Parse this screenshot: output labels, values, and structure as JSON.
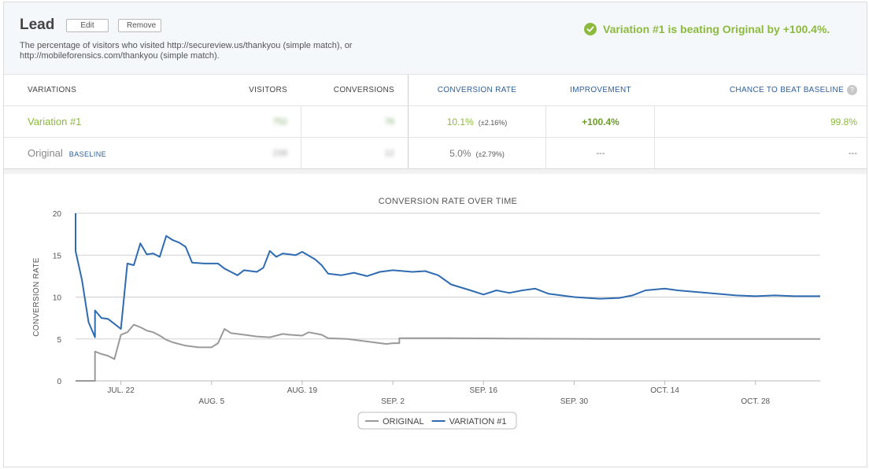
{
  "goal": {
    "title": "Lead",
    "edit_label": "Edit",
    "remove_label": "Remove",
    "description": "The percentage of visitors who visited http://secureview.us/thankyou (simple match), or http://mobileforensics.com/thankyou (simple match)."
  },
  "verdict": {
    "text": "Variation #1 is beating Original by +100.4%.",
    "color": "#8cba3c"
  },
  "table": {
    "headers": {
      "variations": "VARIATIONS",
      "visitors": "VISITORS",
      "conversions": "CONVERSIONS",
      "conversion_rate": "CONVERSION RATE",
      "improvement": "IMPROVEMENT",
      "chance": "CHANCE TO BEAT BASELINE",
      "help_icon": "?"
    },
    "rows": [
      {
        "name": "Variation #1",
        "visitors": "752",
        "conversions": "76",
        "rate": "10.1%",
        "interval": "(±2.16%)",
        "improvement": "+100.4%",
        "chance": "99.8%"
      },
      {
        "name": "Original",
        "tag": "BASELINE",
        "visitors": "239",
        "conversions": "12",
        "rate": "5.0%",
        "interval": "(±2.79%)",
        "improvement": "---",
        "chance": "---"
      }
    ]
  },
  "chart_data": {
    "type": "line",
    "title": "CONVERSION RATE OVER TIME",
    "xlabel": "",
    "ylabel": "CONVERSION RATE",
    "x_range": [
      "2013-07-15",
      "2013-11-07"
    ],
    "ylim": [
      0,
      20
    ],
    "y_ticks": [
      0,
      5,
      10,
      15,
      20
    ],
    "x_ticks": [
      {
        "date": "2013-07-22",
        "label": "JUL. 22"
      },
      {
        "date": "2013-08-05",
        "label": "AUG. 5"
      },
      {
        "date": "2013-08-19",
        "label": "AUG. 19"
      },
      {
        "date": "2013-09-02",
        "label": "SEP. 2"
      },
      {
        "date": "2013-09-16",
        "label": "SEP. 16"
      },
      {
        "date": "2013-09-30",
        "label": "SEP. 30"
      },
      {
        "date": "2013-10-14",
        "label": "OCT. 14"
      },
      {
        "date": "2013-10-28",
        "label": "OCT. 28"
      }
    ],
    "grid": true,
    "legend_position": "bottom-center",
    "series": [
      {
        "name": "ORIGINAL",
        "color": "#9a9a9a",
        "points": [
          [
            "2013-07-15",
            0
          ],
          [
            "2013-07-18",
            0
          ],
          [
            "2013-07-18",
            3.5
          ],
          [
            "2013-07-19",
            3.2
          ],
          [
            "2013-07-20",
            3.0
          ],
          [
            "2013-07-21",
            2.6
          ],
          [
            "2013-07-22",
            5.5
          ],
          [
            "2013-07-23",
            5.8
          ],
          [
            "2013-07-24",
            6.7
          ],
          [
            "2013-07-25",
            6.4
          ],
          [
            "2013-07-26",
            6.0
          ],
          [
            "2013-07-27",
            5.8
          ],
          [
            "2013-07-28",
            5.4
          ],
          [
            "2013-07-29",
            4.9
          ],
          [
            "2013-07-30",
            4.6
          ],
          [
            "2013-08-01",
            4.2
          ],
          [
            "2013-08-03",
            4.0
          ],
          [
            "2013-08-05",
            4.0
          ],
          [
            "2013-08-06",
            4.5
          ],
          [
            "2013-08-07",
            6.2
          ],
          [
            "2013-08-08",
            5.7
          ],
          [
            "2013-08-10",
            5.5
          ],
          [
            "2013-08-12",
            5.3
          ],
          [
            "2013-08-14",
            5.2
          ],
          [
            "2013-08-16",
            5.6
          ],
          [
            "2013-08-17",
            5.5
          ],
          [
            "2013-08-19",
            5.4
          ],
          [
            "2013-08-20",
            5.8
          ],
          [
            "2013-08-22",
            5.5
          ],
          [
            "2013-08-23",
            5.1
          ],
          [
            "2013-08-26",
            5.0
          ],
          [
            "2013-08-30",
            4.6
          ],
          [
            "2013-09-01",
            4.4
          ],
          [
            "2013-09-02",
            4.5
          ],
          [
            "2013-09-03",
            4.5
          ],
          [
            "2013-09-03",
            5.1
          ],
          [
            "2013-09-10",
            5.1
          ],
          [
            "2013-09-20",
            5.05
          ],
          [
            "2013-10-05",
            5.0
          ],
          [
            "2013-10-20",
            5.0
          ],
          [
            "2013-11-07",
            5.0
          ]
        ]
      },
      {
        "name": "VARIATION #1",
        "color": "#2f6bb0",
        "points": [
          [
            "2013-07-15",
            20.0
          ],
          [
            "2013-07-15",
            15.5
          ],
          [
            "2013-07-16",
            12.0
          ],
          [
            "2013-07-17",
            7.0
          ],
          [
            "2013-07-18",
            5.2
          ],
          [
            "2013-07-18",
            8.4
          ],
          [
            "2013-07-19",
            7.5
          ],
          [
            "2013-07-20",
            7.4
          ],
          [
            "2013-07-21",
            6.8
          ],
          [
            "2013-07-22",
            6.2
          ],
          [
            "2013-07-23",
            14.0
          ],
          [
            "2013-07-24",
            13.8
          ],
          [
            "2013-07-25",
            16.4
          ],
          [
            "2013-07-26",
            15.1
          ],
          [
            "2013-07-27",
            15.2
          ],
          [
            "2013-07-28",
            14.8
          ],
          [
            "2013-07-29",
            17.3
          ],
          [
            "2013-07-30",
            16.8
          ],
          [
            "2013-07-31",
            16.5
          ],
          [
            "2013-08-01",
            16.0
          ],
          [
            "2013-08-02",
            14.1
          ],
          [
            "2013-08-04",
            14.0
          ],
          [
            "2013-08-06",
            14.0
          ],
          [
            "2013-08-07",
            13.4
          ],
          [
            "2013-08-08",
            13.0
          ],
          [
            "2013-08-09",
            12.6
          ],
          [
            "2013-08-10",
            13.2
          ],
          [
            "2013-08-12",
            13.0
          ],
          [
            "2013-08-13",
            13.5
          ],
          [
            "2013-08-14",
            15.5
          ],
          [
            "2013-08-15",
            14.8
          ],
          [
            "2013-08-16",
            15.2
          ],
          [
            "2013-08-18",
            15.0
          ],
          [
            "2013-08-19",
            15.4
          ],
          [
            "2013-08-21",
            14.5
          ],
          [
            "2013-08-22",
            13.8
          ],
          [
            "2013-08-23",
            12.8
          ],
          [
            "2013-08-25",
            12.6
          ],
          [
            "2013-08-27",
            12.9
          ],
          [
            "2013-08-29",
            12.5
          ],
          [
            "2013-08-31",
            13.0
          ],
          [
            "2013-09-02",
            13.2
          ],
          [
            "2013-09-05",
            13.0
          ],
          [
            "2013-09-07",
            13.1
          ],
          [
            "2013-09-09",
            12.6
          ],
          [
            "2013-09-11",
            11.5
          ],
          [
            "2013-09-14",
            10.8
          ],
          [
            "2013-09-16",
            10.3
          ],
          [
            "2013-09-18",
            10.8
          ],
          [
            "2013-09-20",
            10.5
          ],
          [
            "2013-09-22",
            10.8
          ],
          [
            "2013-09-24",
            11.0
          ],
          [
            "2013-09-26",
            10.4
          ],
          [
            "2013-09-28",
            10.2
          ],
          [
            "2013-09-30",
            10.0
          ],
          [
            "2013-10-02",
            9.9
          ],
          [
            "2013-10-04",
            9.8
          ],
          [
            "2013-10-07",
            9.9
          ],
          [
            "2013-10-09",
            10.2
          ],
          [
            "2013-10-11",
            10.8
          ],
          [
            "2013-10-14",
            11.0
          ],
          [
            "2013-10-16",
            10.8
          ],
          [
            "2013-10-19",
            10.6
          ],
          [
            "2013-10-22",
            10.4
          ],
          [
            "2013-10-25",
            10.2
          ],
          [
            "2013-10-28",
            10.1
          ],
          [
            "2013-10-31",
            10.2
          ],
          [
            "2013-11-03",
            10.1
          ],
          [
            "2013-11-07",
            10.1
          ]
        ]
      }
    ]
  }
}
